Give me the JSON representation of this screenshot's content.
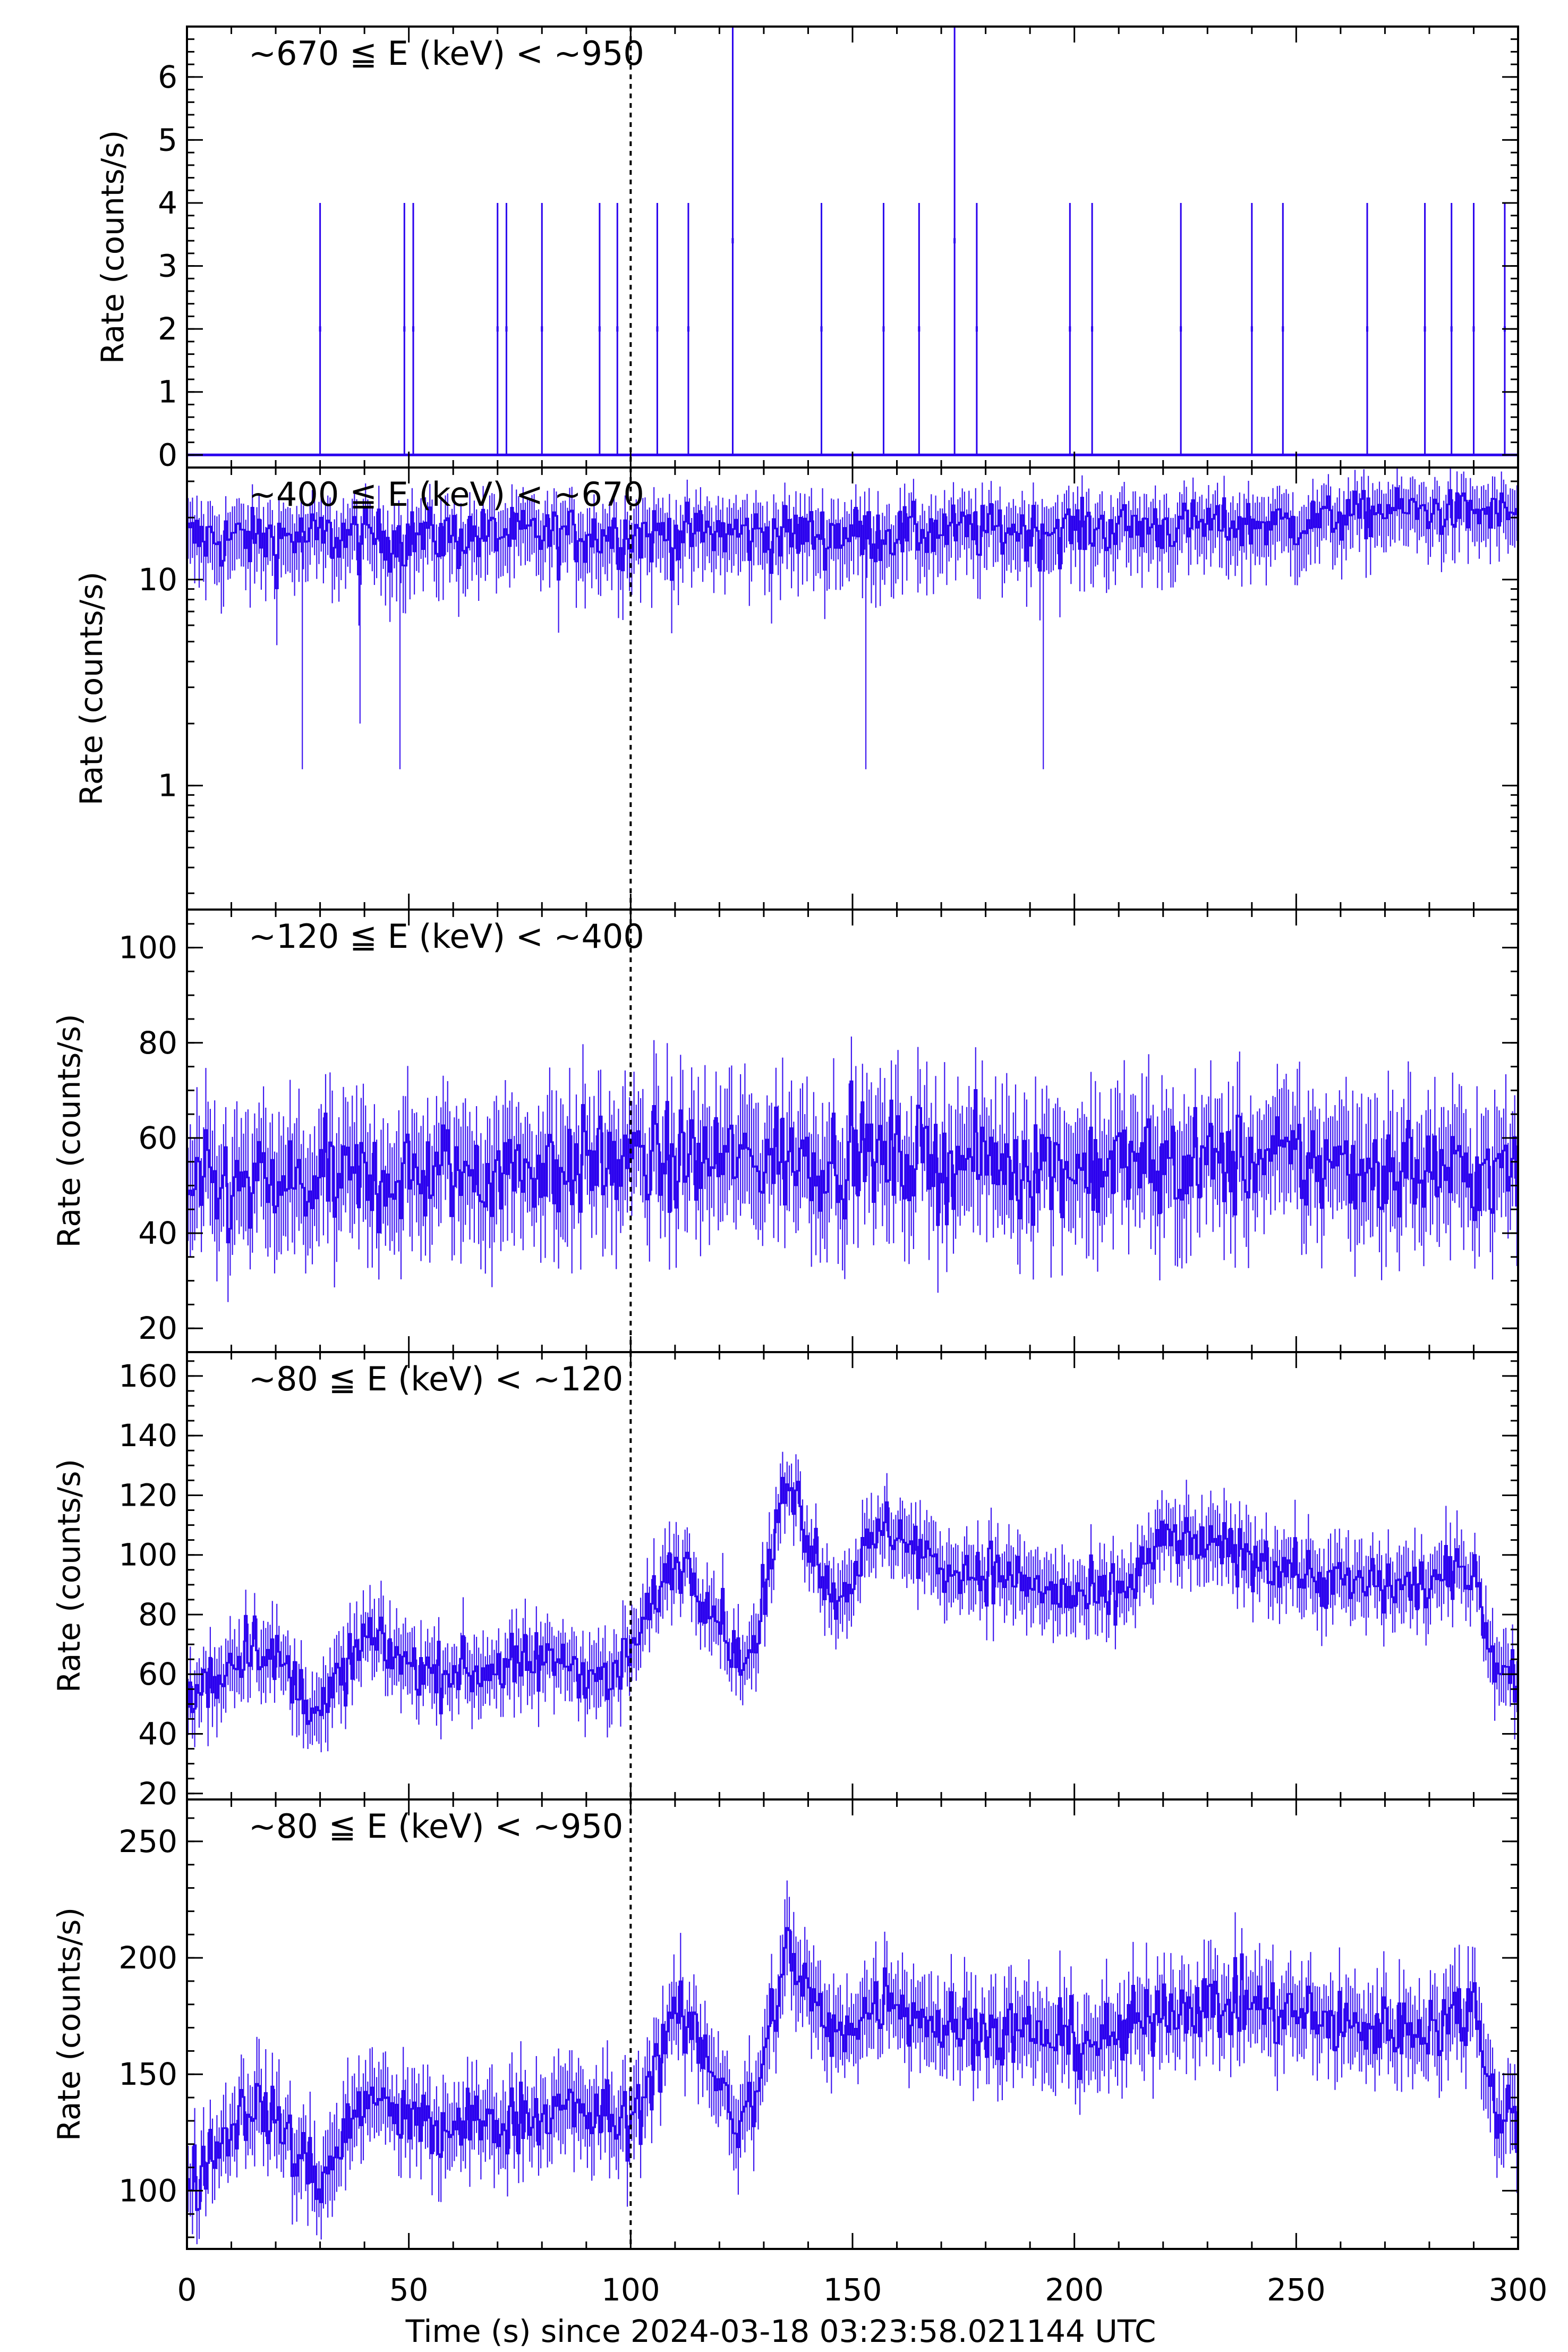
{
  "chart_data": {
    "type": "line",
    "subtype": "stacked light-curve panels with error bars",
    "title": "",
    "xlabel": "Time (s) since 2024-03-18 03:23:58.021144 UTC",
    "xlim": [
      0,
      300
    ],
    "xticks": [
      0,
      50,
      100,
      150,
      200,
      250,
      300
    ],
    "xtick_labels": [
      "0",
      "50",
      "100",
      "150",
      "200",
      "250",
      "300"
    ],
    "reference_line": {
      "x": 100,
      "style": "dotted",
      "color": "#000000"
    },
    "line_color": "#2a00ee",
    "bin_width_s": 0.5,
    "panels": [
      {
        "label": "~670 ≦ E (keV) < ~950",
        "ylabel": "Rate (counts/s)",
        "yscale": "linear",
        "ylim": [
          -0.2,
          6.8
        ],
        "yticks": [
          0,
          1,
          2,
          3,
          4,
          5,
          6
        ],
        "ytick_labels": [
          "0",
          "1",
          "2",
          "3",
          "4",
          "5",
          "6"
        ],
        "baseline": 0,
        "events": [
          {
            "t": 30,
            "rate": 4
          },
          {
            "t": 49,
            "rate": 4
          },
          {
            "t": 51,
            "rate": 4
          },
          {
            "t": 70,
            "rate": 4
          },
          {
            "t": 72,
            "rate": 4
          },
          {
            "t": 80,
            "rate": 4
          },
          {
            "t": 93,
            "rate": 4
          },
          {
            "t": 97,
            "rate": 4
          },
          {
            "t": 106,
            "rate": 4
          },
          {
            "t": 113,
            "rate": 4
          },
          {
            "t": 123,
            "rate": 6.8
          },
          {
            "t": 143,
            "rate": 4
          },
          {
            "t": 157,
            "rate": 4
          },
          {
            "t": 165,
            "rate": 4
          },
          {
            "t": 173,
            "rate": 6.8
          },
          {
            "t": 178,
            "rate": 4
          },
          {
            "t": 199,
            "rate": 4
          },
          {
            "t": 204,
            "rate": 4
          },
          {
            "t": 224,
            "rate": 4
          },
          {
            "t": 240,
            "rate": 4
          },
          {
            "t": 247,
            "rate": 4
          },
          {
            "t": 266,
            "rate": 4
          },
          {
            "t": 279,
            "rate": 4
          },
          {
            "t": 285,
            "rate": 4
          },
          {
            "t": 290,
            "rate": 4
          },
          {
            "t": 297,
            "rate": 4
          }
        ]
      },
      {
        "label": "~400 ≦ E (keV) < ~670",
        "ylabel": "Rate (counts/s)",
        "yscale": "log",
        "ylim": [
          0.25,
          35
        ],
        "yticks": [
          1,
          10
        ],
        "ytick_labels": [
          "1",
          "10"
        ],
        "profile": [
          [
            0,
            16
          ],
          [
            100,
            17
          ],
          [
            150,
            17
          ],
          [
            200,
            18
          ],
          [
            250,
            19
          ],
          [
            270,
            22
          ],
          [
            300,
            21
          ]
        ],
        "noise": 5,
        "dips": [
          {
            "t": 26,
            "rate": 1.2
          },
          {
            "t": 39,
            "rate": 2
          },
          {
            "t": 48,
            "rate": 1.2
          },
          {
            "t": 153,
            "rate": 1.2
          },
          {
            "t": 193,
            "rate": 1.2
          }
        ]
      },
      {
        "label": "~120 ≦ E (keV) < ~400",
        "ylabel": "Rate (counts/s)",
        "yscale": "linear",
        "ylim": [
          15,
          108
        ],
        "yticks": [
          20,
          40,
          60,
          80,
          100
        ],
        "ytick_labels": [
          "20",
          "40",
          "60",
          "80",
          "100"
        ],
        "profile": [
          [
            0,
            48
          ],
          [
            50,
            52
          ],
          [
            100,
            55
          ],
          [
            150,
            56
          ],
          [
            200,
            54
          ],
          [
            250,
            55
          ],
          [
            300,
            52
          ]
        ],
        "noise": 10
      },
      {
        "label": "~80 ≦ E (keV) < ~120",
        "ylabel": "Rate (counts/s)",
        "yscale": "linear",
        "ylim": [
          18,
          168
        ],
        "yticks": [
          20,
          40,
          60,
          80,
          100,
          120,
          140,
          160
        ],
        "ytick_labels": [
          "20",
          "40",
          "60",
          "80",
          "100",
          "120",
          "140",
          "160"
        ],
        "profile": [
          [
            0,
            50
          ],
          [
            15,
            72
          ],
          [
            25,
            55
          ],
          [
            30,
            48
          ],
          [
            40,
            72
          ],
          [
            55,
            60
          ],
          [
            70,
            62
          ],
          [
            85,
            65
          ],
          [
            95,
            58
          ],
          [
            100,
            68
          ],
          [
            110,
            100
          ],
          [
            120,
            80
          ],
          [
            124,
            62
          ],
          [
            128,
            70
          ],
          [
            135,
            128
          ],
          [
            145,
            85
          ],
          [
            158,
            110
          ],
          [
            170,
            95
          ],
          [
            180,
            95
          ],
          [
            200,
            85
          ],
          [
            210,
            85
          ],
          [
            220,
            105
          ],
          [
            240,
            100
          ],
          [
            260,
            90
          ],
          [
            280,
            90
          ],
          [
            290,
            95
          ],
          [
            295,
            60
          ],
          [
            300,
            60
          ]
        ],
        "noise": 9
      },
      {
        "label": "~80 ≦ E (keV) < ~950",
        "ylabel": "Rate (counts/s)",
        "yscale": "linear",
        "ylim": [
          75,
          268
        ],
        "yticks": [
          100,
          150,
          200,
          250
        ],
        "ytick_labels": [
          "100",
          "150",
          "200",
          "250"
        ],
        "profile": [
          [
            0,
            100
          ],
          [
            15,
            140
          ],
          [
            25,
            115
          ],
          [
            30,
            105
          ],
          [
            40,
            140
          ],
          [
            55,
            125
          ],
          [
            70,
            130
          ],
          [
            85,
            135
          ],
          [
            95,
            130
          ],
          [
            100,
            130
          ],
          [
            110,
            175
          ],
          [
            120,
            150
          ],
          [
            124,
            125
          ],
          [
            128,
            140
          ],
          [
            135,
            205
          ],
          [
            145,
            165
          ],
          [
            158,
            185
          ],
          [
            170,
            170
          ],
          [
            180,
            170
          ],
          [
            200,
            165
          ],
          [
            210,
            165
          ],
          [
            220,
            180
          ],
          [
            240,
            180
          ],
          [
            260,
            170
          ],
          [
            280,
            170
          ],
          [
            290,
            180
          ],
          [
            295,
            135
          ],
          [
            300,
            135
          ]
        ],
        "noise": 14
      }
    ]
  }
}
